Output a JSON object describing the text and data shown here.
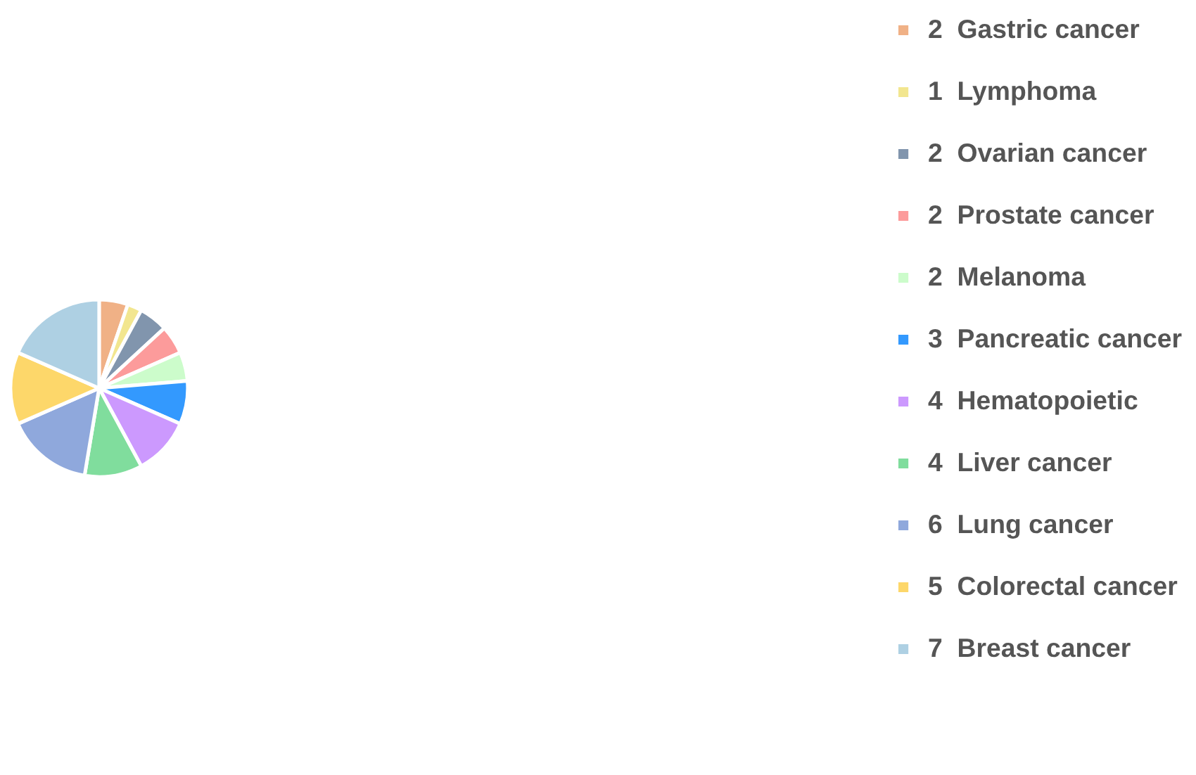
{
  "chart_data": {
    "type": "pie",
    "categories": [
      "2  Gastric cancer",
      "1  Lymphoma",
      "2  Ovarian cancer",
      "2  Prostate cancer",
      "2  Melanoma",
      "3  Pancreatic cancer",
      "4  Hematopoietic",
      "4  Liver cancer",
      "6  Lung cancer",
      "5  Colorectal cancer",
      "7  Breast cancer"
    ],
    "values": [
      2,
      1,
      2,
      2,
      2,
      3,
      4,
      4,
      6,
      5,
      7
    ],
    "colors": [
      "#f0b186",
      "#f2e68f",
      "#8195ad",
      "#fc9b9b",
      "#ccfccb",
      "#3399fe",
      "#cc99fe",
      "#80dd9d",
      "#8fa8dc",
      "#fdd76a",
      "#aed0e3"
    ],
    "legend": "right"
  }
}
